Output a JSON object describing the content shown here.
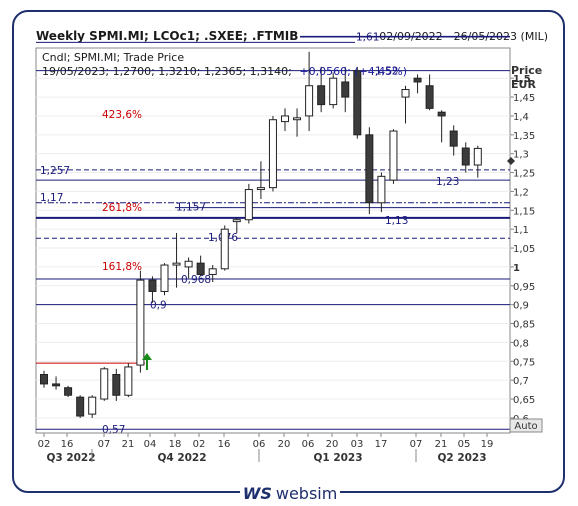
{
  "header": {
    "title": "Weekly SPMI.MI; LCOc1; .SXEE; .FTMIB",
    "date_range": "02/09/2022 - 26/05/2023 (MIL)"
  },
  "legend": {
    "line1": "Cndl; SPMI.MI; Trade Price",
    "line2_prefix": "19/05/2023; 1,2700; 1,3210; 1,2365; 1,3140;",
    "line2_change": "+0,0560; (+4,45%)"
  },
  "axis": {
    "title_line1": "Price",
    "title_line2": "EUR",
    "auto_label": "Auto",
    "y_ticks": [
      "1,5",
      "1,45",
      "1,4",
      "1,35",
      "1,3",
      "1,25",
      "1,2",
      "1,15",
      "1,1",
      "1,05",
      "1",
      "0,95",
      "0,9",
      "0,85",
      "0,8",
      "0,75",
      "0,7",
      "0,65",
      "0,6"
    ],
    "x_ticks": [
      "02",
      "16",
      "07",
      "21",
      "04",
      "18",
      "02",
      "16",
      "06",
      "20",
      "06",
      "20",
      "03",
      "17",
      "07",
      "21",
      "05",
      "19"
    ],
    "quarters": [
      "Q3 2022",
      "Q4 2022",
      "Q1 2023",
      "Q2 2023"
    ]
  },
  "fib_labels": [
    "423,6%",
    "261,8%",
    "161,8%"
  ],
  "level_labels": [
    "1,61",
    "1,52",
    "1,257",
    "1,23",
    "1,17",
    "1,157",
    "1,13",
    "1,076",
    "0,968",
    "0,9",
    "0,57"
  ],
  "brand": {
    "mark": "WS",
    "name": "websim"
  },
  "colors": {
    "up": "#ffffff",
    "down": "#3c3c3c",
    "level": "#1a1a7a",
    "fib": "#cc0000",
    "arrow": "#1a8a1a"
  },
  "chart_data": {
    "type": "candlestick",
    "title": "Weekly SPMI.MI; LCOc1; .SXEE; .FTMIB",
    "ylabel": "Price EUR",
    "ylim": [
      0.56,
      1.58
    ],
    "series": [
      {
        "week": 1,
        "open": 0.715,
        "high": 0.725,
        "low": 0.68,
        "close": 0.69
      },
      {
        "week": 2,
        "open": 0.69,
        "high": 0.71,
        "low": 0.675,
        "close": 0.685
      },
      {
        "week": 3,
        "open": 0.68,
        "high": 0.685,
        "low": 0.655,
        "close": 0.66
      },
      {
        "week": 4,
        "open": 0.655,
        "high": 0.66,
        "low": 0.6,
        "close": 0.605
      },
      {
        "week": 5,
        "open": 0.61,
        "high": 0.66,
        "low": 0.6,
        "close": 0.655
      },
      {
        "week": 6,
        "open": 0.65,
        "high": 0.735,
        "low": 0.645,
        "close": 0.73
      },
      {
        "week": 7,
        "open": 0.715,
        "high": 0.73,
        "low": 0.645,
        "close": 0.66
      },
      {
        "week": 8,
        "open": 0.66,
        "high": 0.745,
        "low": 0.655,
        "close": 0.735
      },
      {
        "week": 9,
        "open": 0.74,
        "high": 0.99,
        "low": 0.72,
        "close": 0.965
      },
      {
        "week": 10,
        "open": 0.965,
        "high": 0.975,
        "low": 0.905,
        "close": 0.935
      },
      {
        "week": 11,
        "open": 0.935,
        "high": 1.01,
        "low": 0.925,
        "close": 1.005
      },
      {
        "week": 12,
        "open": 1.005,
        "high": 1.09,
        "low": 0.945,
        "close": 1.01
      },
      {
        "week": 13,
        "open": 1.0,
        "high": 1.025,
        "low": 0.97,
        "close": 1.015
      },
      {
        "week": 14,
        "open": 1.01,
        "high": 1.03,
        "low": 0.975,
        "close": 0.98
      },
      {
        "week": 15,
        "open": 0.98,
        "high": 1.005,
        "low": 0.96,
        "close": 0.995
      },
      {
        "week": 16,
        "open": 0.995,
        "high": 1.11,
        "low": 0.99,
        "close": 1.1
      },
      {
        "week": 17,
        "open": 1.12,
        "high": 1.13,
        "low": 1.09,
        "close": 1.125
      },
      {
        "week": 18,
        "open": 1.125,
        "high": 1.22,
        "low": 1.115,
        "close": 1.205
      },
      {
        "week": 19,
        "open": 1.205,
        "high": 1.28,
        "low": 1.18,
        "close": 1.21
      },
      {
        "week": 20,
        "open": 1.21,
        "high": 1.4,
        "low": 1.2,
        "close": 1.39
      },
      {
        "week": 21,
        "open": 1.385,
        "high": 1.42,
        "low": 1.36,
        "close": 1.4
      },
      {
        "week": 22,
        "open": 1.39,
        "high": 1.42,
        "low": 1.345,
        "close": 1.395
      },
      {
        "week": 23,
        "open": 1.4,
        "high": 1.57,
        "low": 1.36,
        "close": 1.48
      },
      {
        "week": 24,
        "open": 1.48,
        "high": 1.53,
        "low": 1.41,
        "close": 1.43
      },
      {
        "week": 25,
        "open": 1.43,
        "high": 1.515,
        "low": 1.42,
        "close": 1.5
      },
      {
        "week": 26,
        "open": 1.49,
        "high": 1.53,
        "low": 1.41,
        "close": 1.45
      },
      {
        "week": 27,
        "open": 1.52,
        "high": 1.53,
        "low": 1.34,
        "close": 1.35
      },
      {
        "week": 28,
        "open": 1.35,
        "high": 1.37,
        "low": 1.14,
        "close": 1.17
      },
      {
        "week": 29,
        "open": 1.17,
        "high": 1.25,
        "low": 1.145,
        "close": 1.24
      },
      {
        "week": 30,
        "open": 1.23,
        "high": 1.365,
        "low": 1.22,
        "close": 1.36
      },
      {
        "week": 31,
        "open": 1.45,
        "high": 1.48,
        "low": 1.38,
        "close": 1.47
      },
      {
        "week": 32,
        "open": 1.5,
        "high": 1.51,
        "low": 1.46,
        "close": 1.49
      },
      {
        "week": 33,
        "open": 1.48,
        "high": 1.51,
        "low": 1.415,
        "close": 1.42
      },
      {
        "week": 34,
        "open": 1.41,
        "high": 1.415,
        "low": 1.33,
        "close": 1.4
      },
      {
        "week": 35,
        "open": 1.36,
        "high": 1.375,
        "low": 1.295,
        "close": 1.32
      },
      {
        "week": 36,
        "open": 1.315,
        "high": 1.33,
        "low": 1.25,
        "close": 1.27
      },
      {
        "week": 37,
        "open": 1.27,
        "high": 1.321,
        "low": 1.2365,
        "close": 1.314
      }
    ]
  }
}
